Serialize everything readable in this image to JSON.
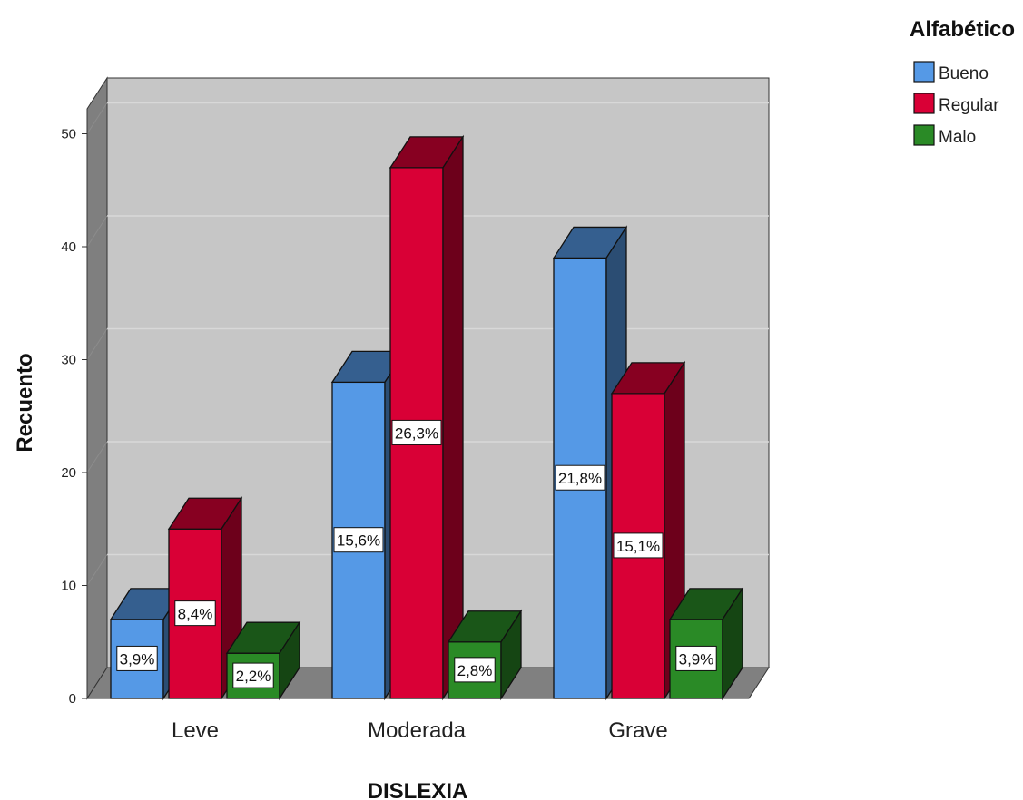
{
  "chart_data": {
    "type": "bar",
    "xlabel": "DISLEXIA",
    "ylabel": "Recuento",
    "ylim": [
      0,
      52
    ],
    "yticks": [
      0,
      10,
      20,
      30,
      40,
      50
    ],
    "categories": [
      "Leve",
      "Moderada",
      "Grave"
    ],
    "legend": {
      "title": "Alfabético",
      "position": "top-right"
    },
    "grid": true,
    "series": [
      {
        "name": "Bueno",
        "values": [
          7,
          28,
          39
        ],
        "labels": [
          "3,9%",
          "15,6%",
          "21,8%"
        ],
        "color": "#5599e6"
      },
      {
        "name": "Regular",
        "values": [
          15,
          47,
          27
        ],
        "labels": [
          "8,4%",
          "26,3%",
          "15,1%"
        ],
        "color": "#d90036"
      },
      {
        "name": "Malo",
        "values": [
          4,
          5,
          7
        ],
        "labels": [
          "2,2%",
          "2,8%",
          "3,9%"
        ],
        "color": "#2a8a26"
      }
    ]
  }
}
